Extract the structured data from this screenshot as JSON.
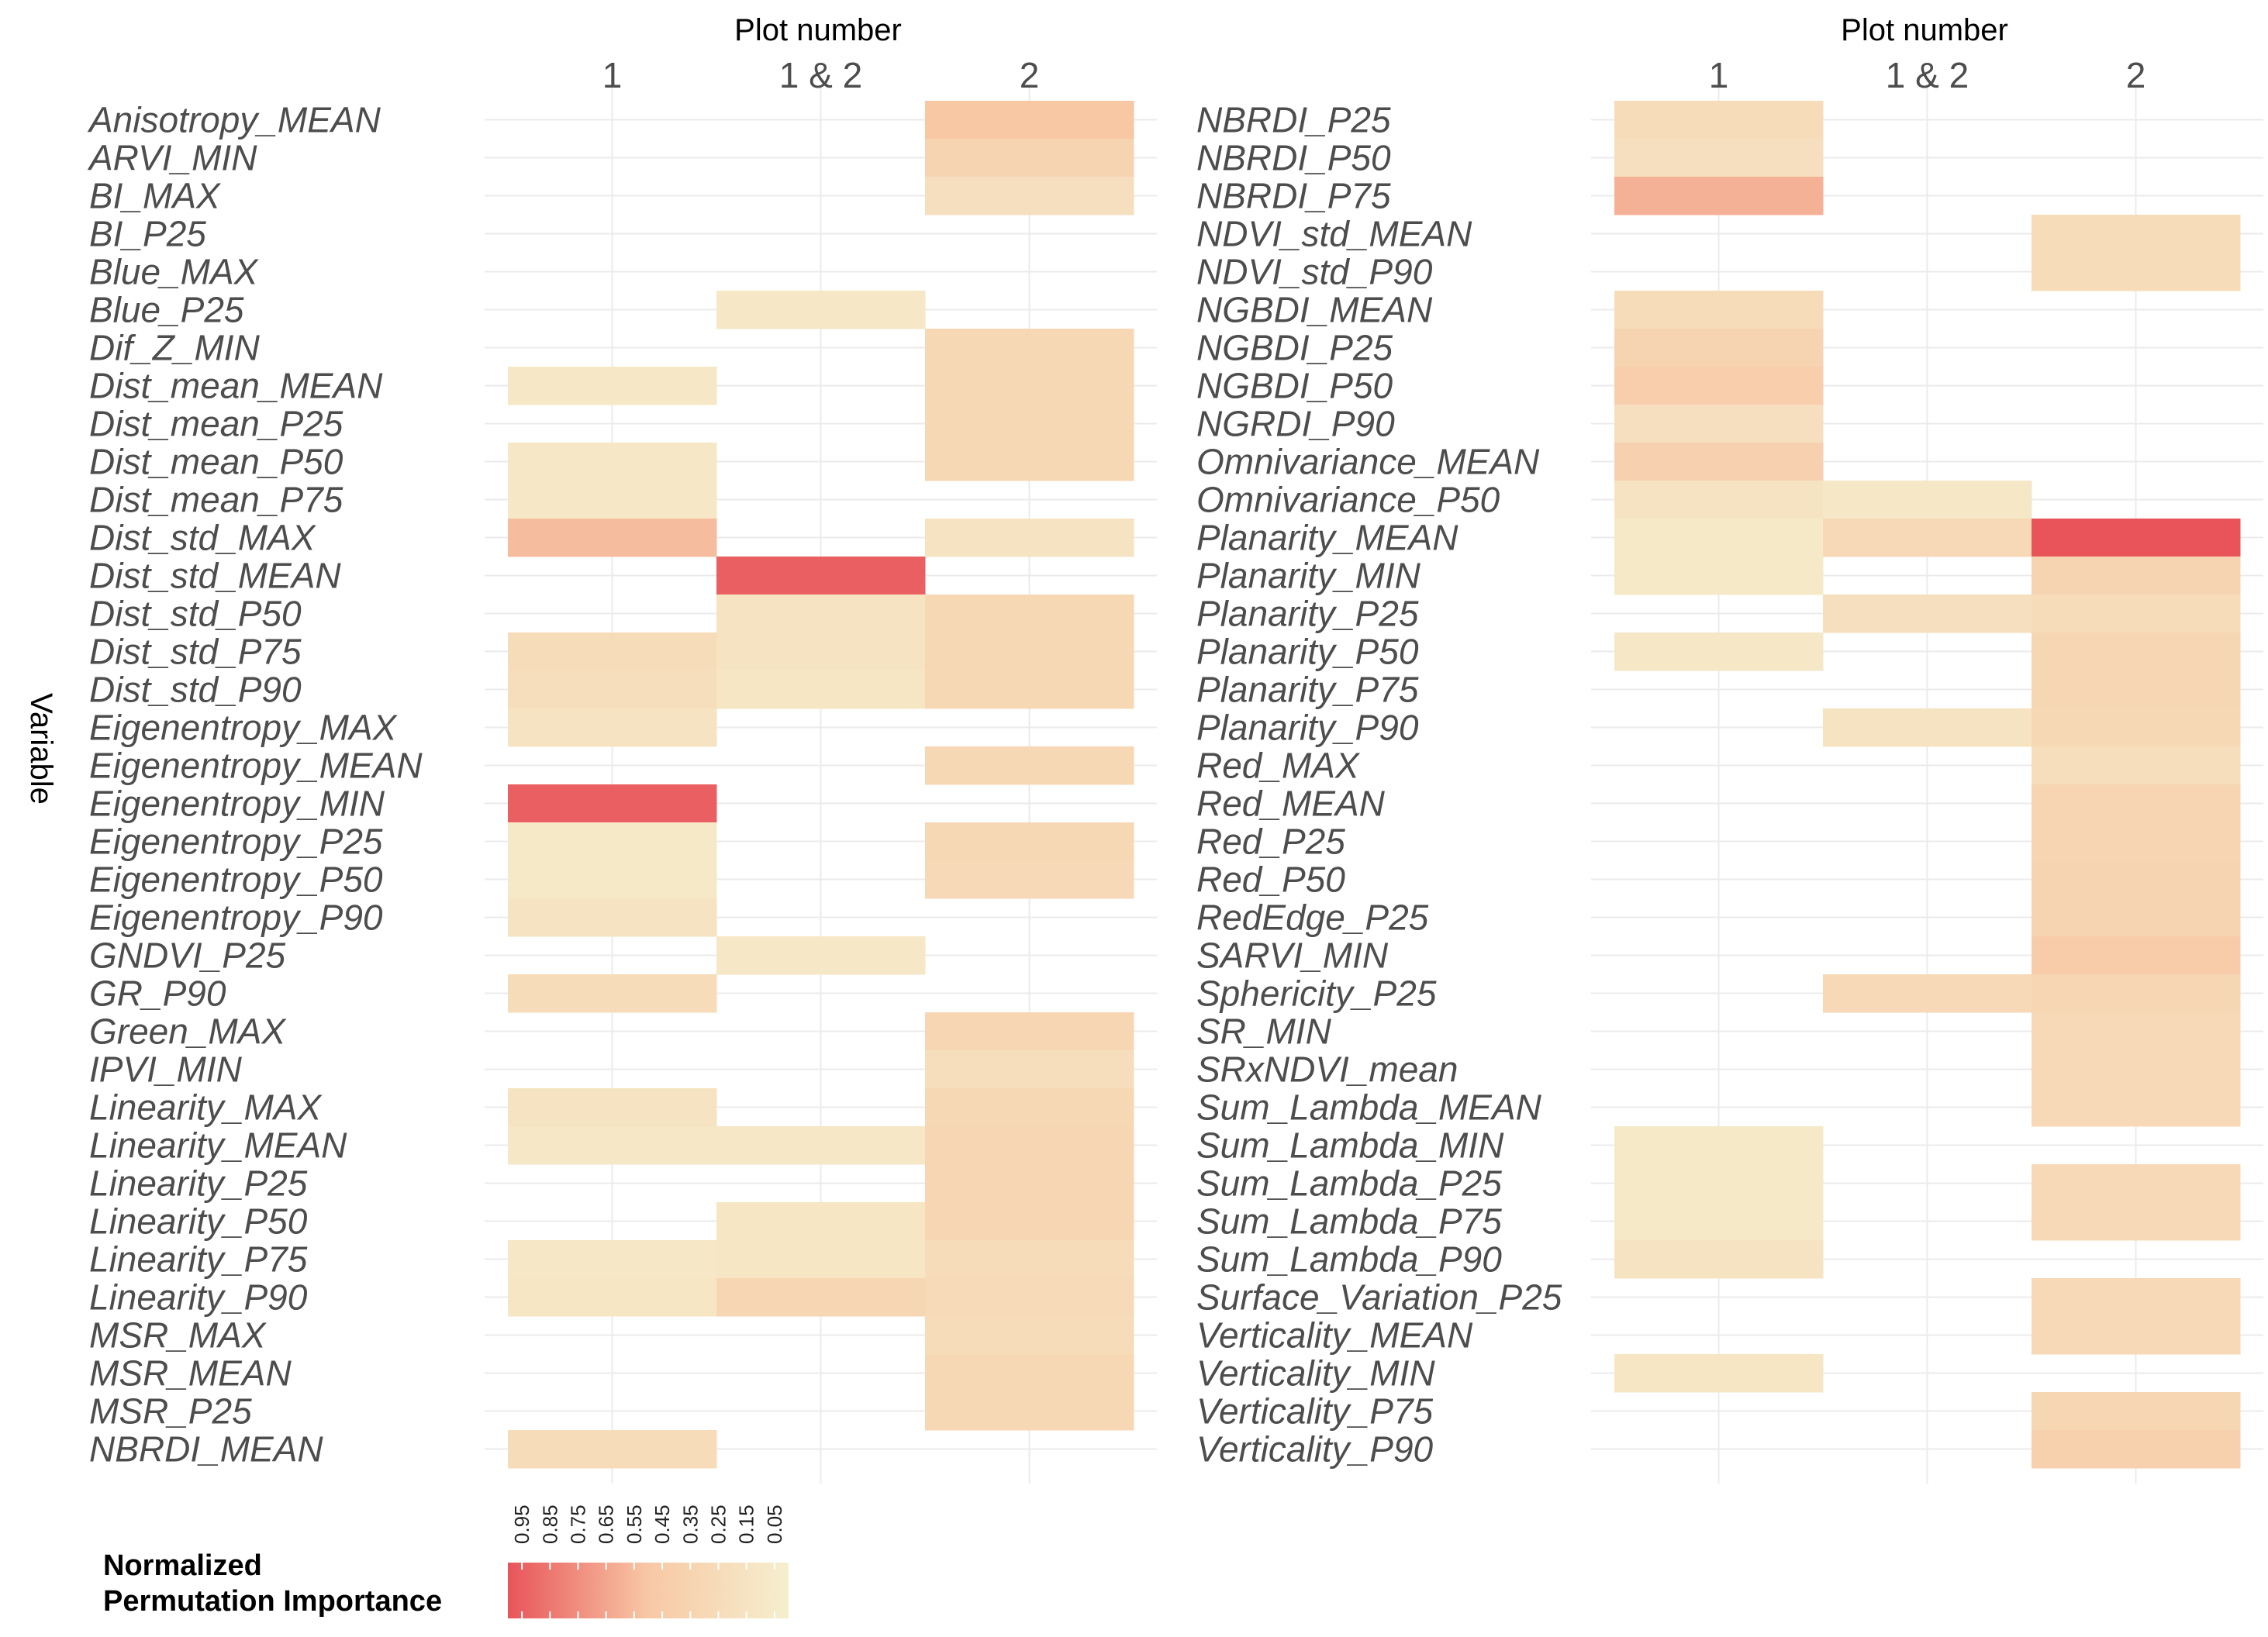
{
  "chart_data": {
    "type": "heatmap",
    "y_axis_title": "Variable",
    "legend": {
      "title_line1": "Normalized",
      "title_line2": "Permutation Importance",
      "ticks": [
        "0.95",
        "0.85",
        "0.75",
        "0.65",
        "0.55",
        "0.45",
        "0.35",
        "0.25",
        "0.15",
        "0.05"
      ],
      "color_high": "#e8545a",
      "color_mid": "#f8c8a5",
      "color_low": "#f5efce",
      "range": [
        0.0,
        1.0
      ]
    },
    "panels": [
      {
        "x_title": "Plot number",
        "columns": [
          "1",
          "1 & 2",
          "2"
        ],
        "rows": [
          {
            "name": "Anisotropy_MEAN",
            "values": [
              null,
              null,
              0.5
            ]
          },
          {
            "name": "ARVI_MIN",
            "values": [
              null,
              null,
              0.35
            ]
          },
          {
            "name": "BI_MAX",
            "values": [
              null,
              null,
              0.2
            ]
          },
          {
            "name": "BI_P25",
            "values": [
              null,
              null,
              null
            ]
          },
          {
            "name": "Blue_MAX",
            "values": [
              null,
              null,
              null
            ]
          },
          {
            "name": "Blue_P25",
            "values": [
              null,
              0.1,
              null
            ]
          },
          {
            "name": "Dif_Z_MIN",
            "values": [
              null,
              null,
              0.3
            ]
          },
          {
            "name": "Dist_mean_MEAN",
            "values": [
              0.1,
              null,
              0.3
            ]
          },
          {
            "name": "Dist_mean_P25",
            "values": [
              null,
              null,
              0.3
            ]
          },
          {
            "name": "Dist_mean_P50",
            "values": [
              0.1,
              null,
              0.3
            ]
          },
          {
            "name": "Dist_mean_P75",
            "values": [
              0.1,
              null,
              null
            ]
          },
          {
            "name": "Dist_std_MAX",
            "values": [
              0.55,
              null,
              0.15
            ]
          },
          {
            "name": "Dist_std_MEAN",
            "values": [
              null,
              0.95,
              null
            ]
          },
          {
            "name": "Dist_std_P50",
            "values": [
              null,
              0.15,
              0.3
            ]
          },
          {
            "name": "Dist_std_P75",
            "values": [
              0.25,
              0.15,
              0.3
            ]
          },
          {
            "name": "Dist_std_P90",
            "values": [
              0.22,
              0.12,
              0.3
            ]
          },
          {
            "name": "Eigenentropy_MAX",
            "values": [
              0.15,
              null,
              null
            ]
          },
          {
            "name": "Eigenentropy_MEAN",
            "values": [
              null,
              null,
              0.3
            ]
          },
          {
            "name": "Eigenentropy_MIN",
            "values": [
              0.95,
              null,
              null
            ]
          },
          {
            "name": "Eigenentropy_P25",
            "values": [
              0.08,
              null,
              0.3
            ]
          },
          {
            "name": "Eigenentropy_P50",
            "values": [
              0.08,
              null,
              0.28
            ]
          },
          {
            "name": "Eigenentropy_P90",
            "values": [
              0.15,
              null,
              null
            ]
          },
          {
            "name": "GNDVI_P25",
            "values": [
              null,
              0.1,
              null
            ]
          },
          {
            "name": "GR_P90",
            "values": [
              0.25,
              null,
              null
            ]
          },
          {
            "name": "Green_MAX",
            "values": [
              null,
              null,
              0.32
            ]
          },
          {
            "name": "IPVI_MIN",
            "values": [
              null,
              null,
              0.22
            ]
          },
          {
            "name": "Linearity_MAX",
            "values": [
              0.15,
              null,
              0.3
            ]
          },
          {
            "name": "Linearity_MEAN",
            "values": [
              0.1,
              0.1,
              0.32
            ]
          },
          {
            "name": "Linearity_P25",
            "values": [
              null,
              null,
              0.32
            ]
          },
          {
            "name": "Linearity_P50",
            "values": [
              null,
              0.12,
              0.32
            ]
          },
          {
            "name": "Linearity_P75",
            "values": [
              0.1,
              0.12,
              0.25
            ]
          },
          {
            "name": "Linearity_P90",
            "values": [
              0.12,
              0.32,
              0.27
            ]
          },
          {
            "name": "MSR_MAX",
            "values": [
              null,
              null,
              0.25
            ]
          },
          {
            "name": "MSR_MEAN",
            "values": [
              null,
              null,
              0.3
            ]
          },
          {
            "name": "MSR_P25",
            "values": [
              null,
              null,
              0.3
            ]
          },
          {
            "name": "NBRDI_MEAN",
            "values": [
              0.25,
              null,
              null
            ]
          }
        ]
      },
      {
        "x_title": "Plot number",
        "columns": [
          "1",
          "1 & 2",
          "2"
        ],
        "rows": [
          {
            "name": "NBRDI_P25",
            "values": [
              0.25,
              null,
              null
            ]
          },
          {
            "name": "NBRDI_P50",
            "values": [
              0.2,
              null,
              null
            ]
          },
          {
            "name": "NBRDI_P75",
            "values": [
              0.6,
              null,
              null
            ]
          },
          {
            "name": "NDVI_std_MEAN",
            "values": [
              null,
              null,
              0.25
            ]
          },
          {
            "name": "NDVI_std_P90",
            "values": [
              null,
              null,
              0.25
            ]
          },
          {
            "name": "NGBDI_MEAN",
            "values": [
              0.25,
              null,
              null
            ]
          },
          {
            "name": "NGBDI_P25",
            "values": [
              0.35,
              null,
              null
            ]
          },
          {
            "name": "NGBDI_P50",
            "values": [
              0.42,
              null,
              null
            ]
          },
          {
            "name": "NGRDI_P90",
            "values": [
              0.2,
              null,
              null
            ]
          },
          {
            "name": "Omnivariance_MEAN",
            "values": [
              0.38,
              null,
              null
            ]
          },
          {
            "name": "Omnivariance_P50",
            "values": [
              0.15,
              0.1,
              null
            ]
          },
          {
            "name": "Planarity_MEAN",
            "values": [
              0.08,
              0.28,
              1.0
            ]
          },
          {
            "name": "Planarity_MIN",
            "values": [
              0.08,
              null,
              0.35
            ]
          },
          {
            "name": "Planarity_P25",
            "values": [
              null,
              0.2,
              0.25
            ]
          },
          {
            "name": "Planarity_P50",
            "values": [
              0.1,
              null,
              0.32
            ]
          },
          {
            "name": "Planarity_P75",
            "values": [
              null,
              null,
              0.32
            ]
          },
          {
            "name": "Planarity_P90",
            "values": [
              null,
              0.15,
              0.3
            ]
          },
          {
            "name": "Red_MAX",
            "values": [
              null,
              null,
              0.22
            ]
          },
          {
            "name": "Red_MEAN",
            "values": [
              null,
              null,
              0.33
            ]
          },
          {
            "name": "Red_P25",
            "values": [
              null,
              null,
              0.33
            ]
          },
          {
            "name": "Red_P50",
            "values": [
              null,
              null,
              0.35
            ]
          },
          {
            "name": "RedEdge_P25",
            "values": [
              null,
              null,
              0.35
            ]
          },
          {
            "name": "SARVI_MIN",
            "values": [
              null,
              null,
              0.45
            ]
          },
          {
            "name": "Sphericity_P25",
            "values": [
              null,
              0.28,
              0.32
            ]
          },
          {
            "name": "SR_MIN",
            "values": [
              null,
              null,
              0.28
            ]
          },
          {
            "name": "SRxNDVI_mean",
            "values": [
              null,
              null,
              0.28
            ]
          },
          {
            "name": "Sum_Lambda_MEAN",
            "values": [
              null,
              null,
              0.28
            ]
          },
          {
            "name": "Sum_Lambda_MIN",
            "values": [
              0.08,
              null,
              null
            ]
          },
          {
            "name": "Sum_Lambda_P25",
            "values": [
              0.08,
              null,
              0.28
            ]
          },
          {
            "name": "Sum_Lambda_P75",
            "values": [
              0.08,
              null,
              0.28
            ]
          },
          {
            "name": "Sum_Lambda_P90",
            "values": [
              0.15,
              null,
              null
            ]
          },
          {
            "name": "Surface_Variation_P25",
            "values": [
              null,
              null,
              0.28
            ]
          },
          {
            "name": "Verticality_MEAN",
            "values": [
              null,
              null,
              0.28
            ]
          },
          {
            "name": "Verticality_MIN",
            "values": [
              0.12,
              null,
              null
            ]
          },
          {
            "name": "Verticality_P75",
            "values": [
              null,
              null,
              0.32
            ]
          },
          {
            "name": "Verticality_P90",
            "values": [
              null,
              null,
              0.4
            ]
          }
        ]
      }
    ]
  }
}
